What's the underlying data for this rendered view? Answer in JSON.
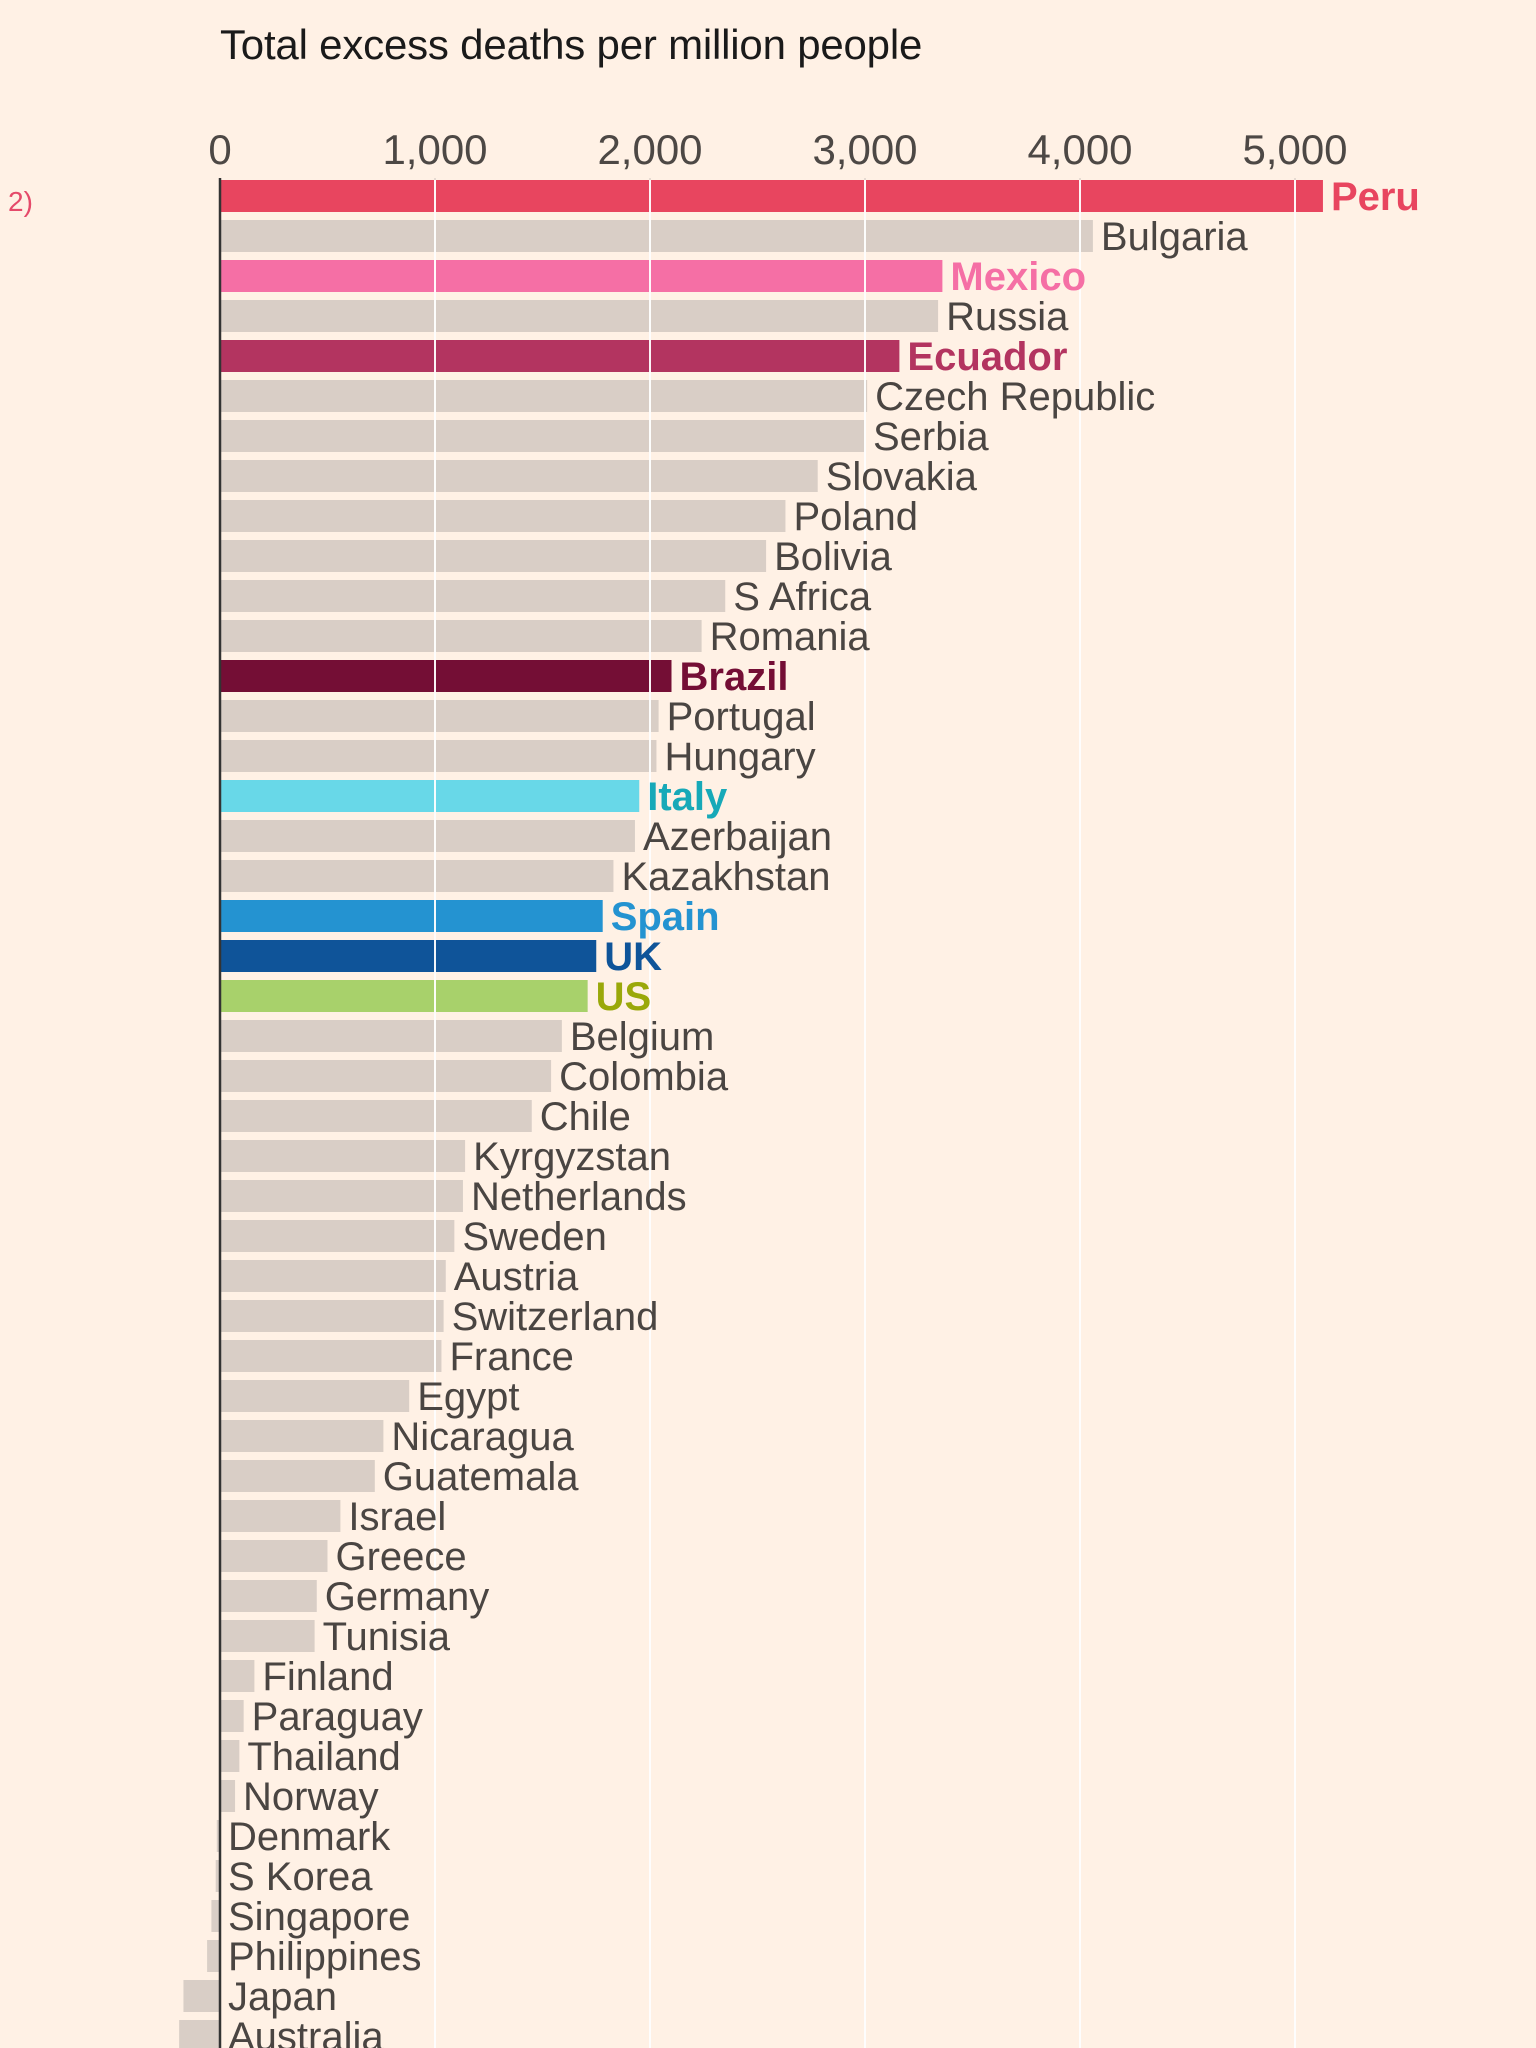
{
  "page": {
    "edge_note": "2)"
  },
  "chart_data": {
    "type": "bar",
    "orientation": "horizontal",
    "title": "Total excess deaths per million people",
    "xlabel": "",
    "ylabel": "",
    "xlim": [
      0,
      5200
    ],
    "x_ticks": [
      0,
      1000,
      2000,
      3000,
      4000,
      5000
    ],
    "x_tick_labels": [
      "0",
      "1,000",
      "2,000",
      "3,000",
      "4,000",
      "5,000"
    ],
    "grid": true,
    "legend": "none",
    "colors": {
      "background": "#fff1e5",
      "default_bar": "#d9cec6",
      "default_label": "#4a4542",
      "grid": "#ffffff",
      "axis": "#333333"
    },
    "categories": [
      "Peru",
      "Bulgaria",
      "Mexico",
      "Russia",
      "Ecuador",
      "Czech Republic",
      "Serbia",
      "Slovakia",
      "Poland",
      "Bolivia",
      "S Africa",
      "Romania",
      "Brazil",
      "Portugal",
      "Hungary",
      "Italy",
      "Azerbaijan",
      "Kazakhstan",
      "Spain",
      "UK",
      "US",
      "Belgium",
      "Colombia",
      "Chile",
      "Kyrgyzstan",
      "Netherlands",
      "Sweden",
      "Austria",
      "Switzerland",
      "France",
      "Egypt",
      "Nicaragua",
      "Guatemala",
      "Israel",
      "Greece",
      "Germany",
      "Tunisia",
      "Finland",
      "Paraguay",
      "Thailand",
      "Norway",
      "Denmark",
      "S Korea",
      "Singapore",
      "Philippines",
      "Japan",
      "Australia"
    ],
    "values": [
      5130,
      4060,
      3360,
      3340,
      3160,
      3010,
      3000,
      2780,
      2630,
      2540,
      2350,
      2240,
      2100,
      2040,
      2030,
      1950,
      1930,
      1830,
      1780,
      1750,
      1710,
      1590,
      1540,
      1450,
      1140,
      1130,
      1090,
      1050,
      1040,
      1030,
      880,
      760,
      720,
      560,
      500,
      450,
      440,
      160,
      110,
      90,
      70,
      -15,
      -20,
      -40,
      -60,
      -170,
      -190
    ],
    "highlights": [
      {
        "category": "Peru",
        "color": "#e8455f",
        "label_bold": true
      },
      {
        "category": "Mexico",
        "color": "#f56fa5",
        "label_bold": true
      },
      {
        "category": "Ecuador",
        "color": "#b33460",
        "label_bold": true
      },
      {
        "category": "Brazil",
        "color": "#740e35",
        "label_bold": true
      },
      {
        "category": "Italy",
        "color": "#68d8e8",
        "label_color": "#17a9b8",
        "label_bold": true
      },
      {
        "category": "Spain",
        "color": "#2493d1",
        "label_bold": true
      },
      {
        "category": "UK",
        "color": "#0f5499",
        "label_bold": true
      },
      {
        "category": "US",
        "color": "#a8d16b",
        "label_color": "#9aa80a",
        "label_bold": true
      }
    ]
  }
}
